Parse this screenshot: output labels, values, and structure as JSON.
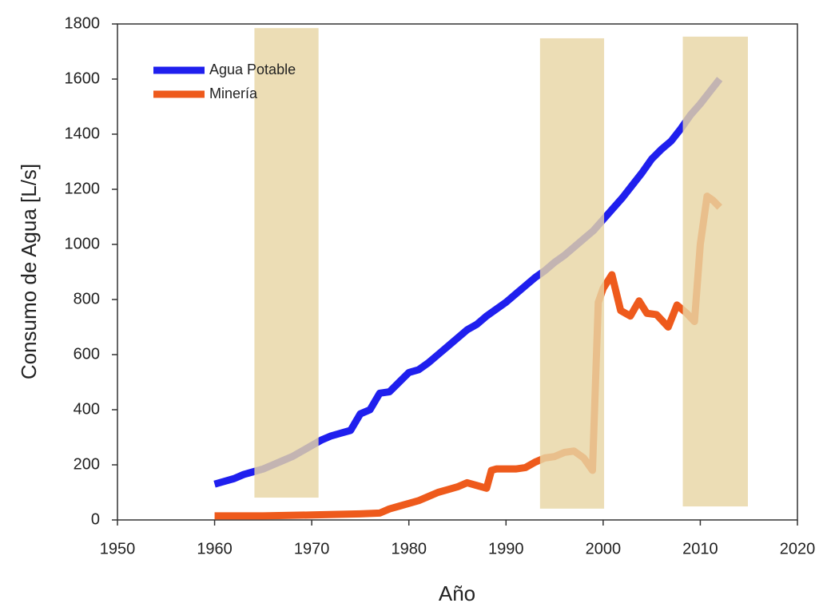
{
  "chart_data": {
    "type": "line",
    "xlabel": "Año",
    "ylabel": "Consumo de Agua [L/s]",
    "xlim": [
      1950,
      2020
    ],
    "xticks": [
      1950,
      1960,
      1970,
      1980,
      1990,
      2000,
      2010,
      2020
    ],
    "ylim": [
      0,
      1800
    ],
    "yticks": [
      0,
      200,
      400,
      600,
      800,
      1000,
      1200,
      1400,
      1600,
      1800
    ],
    "grid": false,
    "legend": "upper left",
    "highlight_color": "#e8d5a5",
    "highlight_spans": [
      {
        "xlim": [
          1964.1,
          1970.7
        ],
        "ylim": [
          81,
          1785
        ]
      },
      {
        "xlim": [
          1993.5,
          2000.1
        ],
        "ylim": [
          41,
          1748
        ]
      },
      {
        "xlim": [
          2008.2,
          2014.9
        ],
        "ylim": [
          49,
          1754
        ]
      }
    ],
    "series": [
      {
        "name": "Agua Potable",
        "color": "#1f1fee",
        "x": [
          1960,
          1961,
          1962,
          1963,
          1964,
          1965,
          1966,
          1967,
          1968,
          1969,
          1970,
          1971,
          1972,
          1973,
          1974,
          1975,
          1976,
          1977,
          1978,
          1979,
          1980,
          1981,
          1982,
          1983,
          1984,
          1985,
          1986,
          1987,
          1988,
          1989,
          1990,
          1991,
          1992,
          1993,
          1994,
          1995,
          1996,
          1997,
          1998,
          1999,
          2000,
          2001,
          2002,
          2003,
          2004,
          2005,
          2006,
          2007,
          2008,
          2009,
          2010,
          2011,
          2012
        ],
        "values": [
          130,
          140,
          150,
          165,
          175,
          185,
          200,
          215,
          230,
          250,
          270,
          290,
          305,
          315,
          325,
          385,
          400,
          460,
          465,
          500,
          535,
          545,
          570,
          600,
          630,
          660,
          690,
          710,
          740,
          765,
          790,
          820,
          850,
          880,
          905,
          935,
          960,
          990,
          1020,
          1050,
          1090,
          1130,
          1170,
          1215,
          1260,
          1310,
          1345,
          1375,
          1420,
          1470,
          1510,
          1555,
          1600
        ]
      },
      {
        "name": "Minería",
        "color": "#ee5a1c",
        "x": [
          1960,
          1965,
          1970,
          1975,
          1977,
          1978,
          1979,
          1980,
          1981,
          1982,
          1983,
          1984,
          1985,
          1986,
          1987,
          1988,
          1988.5,
          1989,
          1990,
          1991,
          1992,
          1993,
          1994,
          1995,
          1996,
          1997,
          1998,
          1998.9,
          1999.5,
          2000,
          2000.9,
          2001.8,
          2002.8,
          2003.7,
          2004.5,
          2005.5,
          2006.7,
          2007.6,
          2008.6,
          2009.4,
          2010,
          2010.7,
          2011.3,
          2012
        ],
        "values": [
          15,
          15,
          18,
          22,
          25,
          40,
          50,
          60,
          70,
          85,
          100,
          110,
          120,
          135,
          125,
          115,
          180,
          185,
          185,
          185,
          190,
          210,
          225,
          230,
          245,
          250,
          225,
          180,
          790,
          840,
          890,
          760,
          740,
          795,
          750,
          745,
          700,
          780,
          750,
          720,
          1000,
          1175,
          1160,
          1135
        ]
      }
    ]
  }
}
